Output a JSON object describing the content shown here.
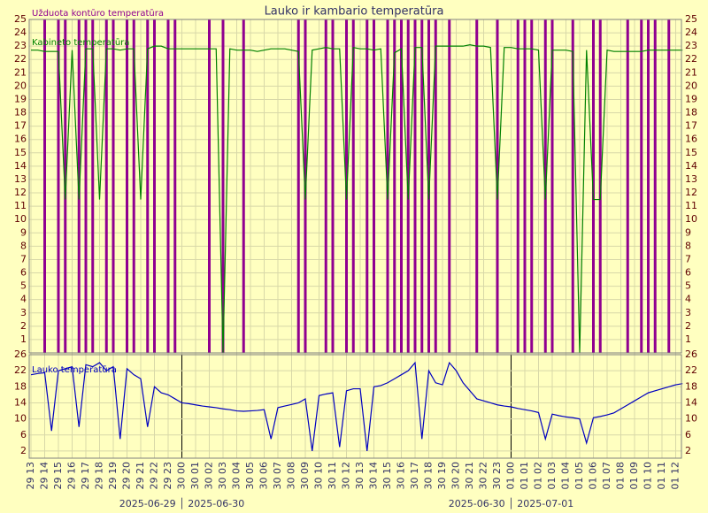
{
  "chart_data": {
    "type": "line",
    "title": "Lauko ir kambario temperatūra",
    "categories": [
      "29 13",
      null,
      "29 14",
      null,
      "29 15",
      null,
      "29 16",
      null,
      "29 17",
      null,
      "29 18",
      null,
      "29 19",
      null,
      "29 20",
      null,
      "29 21",
      null,
      "29 22",
      null,
      "29 23",
      null,
      "30 00",
      null,
      "30 01",
      null,
      "30 02",
      null,
      "30 03",
      null,
      "30 04",
      null,
      "30 05",
      null,
      "30 06",
      null,
      "30 07",
      null,
      "30 08",
      null,
      "30 09",
      null,
      "30 10",
      null,
      "30 11",
      null,
      "30 12",
      null,
      "30 13",
      null,
      "30 14",
      null,
      "30 15",
      null,
      "30 16",
      null,
      "30 17",
      null,
      "30 18",
      null,
      "30 19",
      null,
      "30 20",
      null,
      "30 21",
      null,
      "30 22",
      null,
      "30 23",
      null,
      "01 00",
      null,
      "01 01",
      null,
      "01 02",
      null,
      "01 03",
      null,
      "01 04",
      null,
      "01 05",
      null,
      "01 06",
      null,
      "01 07",
      null,
      "01 08",
      null,
      "01 09",
      null,
      "01 10",
      null,
      "01 11",
      null,
      "01 12",
      null
    ],
    "date_labels": [
      "2025-06-29 │ 2025-06-30",
      "2025-06-30 │ 2025-07-01"
    ],
    "panels": [
      {
        "ylim": [
          0,
          25
        ],
        "yticks": [
          1,
          2,
          3,
          4,
          5,
          6,
          7,
          8,
          9,
          10,
          11,
          12,
          13,
          14,
          15,
          16,
          17,
          18,
          19,
          20,
          21,
          22,
          23,
          24,
          25
        ],
        "series": [
          {
            "name": "Užduota kontūro temperatūra",
            "color": "#900090",
            "style": "pulse",
            "values": [
              0,
              0,
              25,
              0,
              25,
              25,
              0,
              25,
              25,
              25,
              0,
              25,
              25,
              0,
              25,
              25,
              0,
              25,
              25,
              0,
              25,
              25,
              0,
              0,
              0,
              0,
              25,
              0,
              25,
              0,
              0,
              25,
              0,
              0,
              0,
              0,
              0,
              0,
              0,
              25,
              25,
              0,
              0,
              25,
              25,
              0,
              25,
              25,
              0,
              25,
              25,
              0,
              25,
              25,
              25,
              25,
              25,
              25,
              25,
              25,
              0,
              25,
              0,
              0,
              0,
              25,
              0,
              0,
              25,
              0,
              0,
              25,
              25,
              25,
              0,
              25,
              25,
              0,
              0,
              25,
              0,
              0,
              25,
              25,
              0,
              0,
              0,
              25,
              0,
              25,
              25,
              25,
              0,
              25,
              0,
              0
            ]
          },
          {
            "name": "Kabineto temperatūra",
            "color": "#008000",
            "style": "line",
            "values": [
              22.7,
              22.7,
              22.6,
              22.6,
              22.6,
              11.5,
              22.7,
              11.5,
              22.8,
              22.8,
              11.5,
              22.8,
              22.8,
              22.7,
              22.8,
              22.8,
              11.5,
              22.8,
              23.0,
              23.0,
              22.8,
              22.8,
              22.8,
              22.8,
              22.8,
              22.8,
              22.8,
              22.8,
              0,
              22.8,
              22.7,
              22.7,
              22.7,
              22.6,
              22.7,
              22.8,
              22.8,
              22.8,
              22.7,
              22.6,
              11.5,
              22.7,
              22.8,
              22.9,
              22.8,
              22.8,
              11.5,
              22.9,
              22.8,
              22.8,
              22.7,
              22.8,
              11.5,
              22.5,
              22.8,
              11.5,
              22.9,
              22.9,
              11.5,
              23.0,
              23.0,
              23.0,
              23.0,
              23.0,
              23.1,
              23.0,
              23.0,
              22.9,
              11.5,
              22.9,
              22.9,
              22.8,
              22.8,
              22.8,
              22.7,
              11.5,
              22.7,
              22.7,
              22.7,
              22.6,
              0,
              22.7,
              11.5,
              11.5,
              22.7,
              22.6,
              22.6,
              22.6,
              22.6,
              22.6,
              22.7,
              22.7,
              22.7,
              22.7,
              22.7,
              22.7
            ]
          }
        ]
      },
      {
        "ylim": [
          0,
          26
        ],
        "yticks": [
          2,
          6,
          10,
          14,
          18,
          22,
          26
        ],
        "series": [
          {
            "name": "Lauko temperatūra",
            "color": "#0000c0",
            "style": "line",
            "values": [
              21.0,
              21.3,
              21.5,
              7,
              22,
              22.5,
              23,
              8,
              23.5,
              23,
              24,
              22,
              23,
              5,
              22.5,
              21,
              20,
              8,
              18,
              16.5,
              16,
              15,
              14,
              13.8,
              13.5,
              13.2,
              13,
              12.8,
              12.5,
              12.3,
              12,
              11.9,
              12,
              12.1,
              12.3,
              5,
              12.8,
              13.2,
              13.6,
              14,
              15,
              2,
              15.8,
              16.2,
              16.5,
              3,
              17,
              17.5,
              17.5,
              2,
              18,
              18.3,
              19,
              20,
              21,
              22,
              24,
              5,
              22,
              19,
              18.5,
              24,
              22,
              19,
              17,
              15,
              14.5,
              14,
              13.5,
              13.2,
              13,
              12.6,
              12.3,
              12,
              11.6,
              5,
              11.2,
              10.8,
              10.5,
              10.3,
              10,
              4,
              10.3,
              10.6,
              11,
              11.5,
              12.5,
              13.5,
              14.5,
              15.5,
              16.5,
              17,
              17.5,
              18,
              18.5,
              18.8
            ]
          }
        ]
      }
    ]
  }
}
